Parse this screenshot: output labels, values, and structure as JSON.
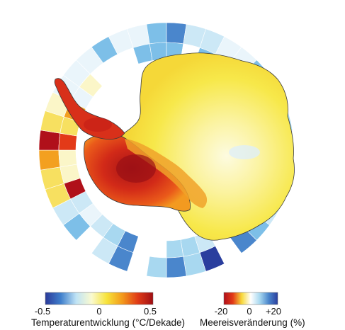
{
  "legend_temperature": {
    "title": "Temperaturentwicklung (°C/Dekade)",
    "ticks": [
      "-0.5",
      "0",
      "0.5"
    ],
    "colors": [
      "#2b3a9a",
      "#3f7fcc",
      "#bfe3f5",
      "#fafad0",
      "#f7e33a",
      "#f39a1c",
      "#e03b16",
      "#a00e14"
    ]
  },
  "legend_seaice": {
    "title": "Meereisveränderung (%)",
    "ticks": [
      "-20",
      "0",
      "+20"
    ],
    "colors": [
      "#b0101a",
      "#e33a18",
      "#f7d93a",
      "#ffffff",
      "#a8d8f0",
      "#4a86cc",
      "#2a3e9e"
    ]
  },
  "colors": {
    "continent_yellow": "#f7ec58",
    "continent_pale": "#fbf6b8",
    "peninsula_red": "#d9281a",
    "west_dark_red": "#b81818",
    "orange": "#ee7d1c",
    "coast_line": "#333333"
  }
}
